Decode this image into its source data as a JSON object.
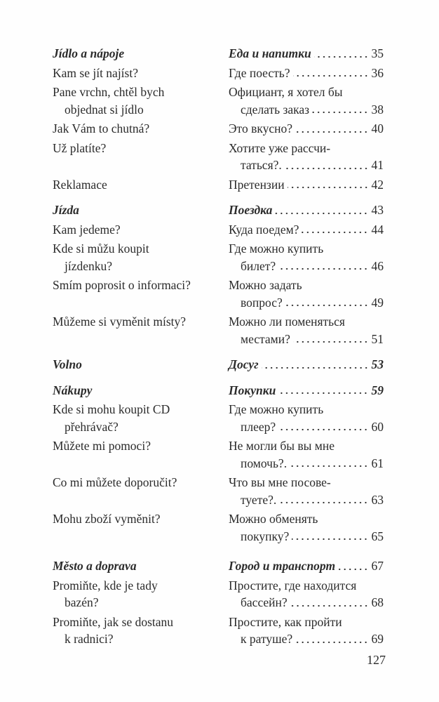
{
  "entries": [
    {
      "type": "heading",
      "cz": [
        "Jídlo a nápoje"
      ],
      "ru": [
        "Еда и напитки"
      ],
      "page": "35"
    },
    {
      "type": "item",
      "cz": [
        "Kam se jít najíst?"
      ],
      "ru": [
        "Где поесть?"
      ],
      "page": "36"
    },
    {
      "type": "item",
      "cz": [
        "Pane vrchn, chtěl bych",
        "objednat si jídlo"
      ],
      "ru": [
        "Официант, я хотел бы",
        "сделать заказ"
      ],
      "page": "38"
    },
    {
      "type": "item",
      "cz": [
        "Jak Vám to chutná?"
      ],
      "ru": [
        "Это вкусно?"
      ],
      "page": "40"
    },
    {
      "type": "item",
      "cz": [
        "Už platíte?"
      ],
      "ru": [
        "Хотите уже рассчи-",
        "таться?."
      ],
      "page": "41"
    },
    {
      "type": "item",
      "cz": [
        "Reklamace"
      ],
      "ru": [
        "Претензии"
      ],
      "page": "42"
    },
    {
      "type": "heading",
      "cz": [
        "Jízda"
      ],
      "ru": [
        "Поездка"
      ],
      "page": "43"
    },
    {
      "type": "item",
      "cz": [
        "Kam jedeme?"
      ],
      "ru": [
        "Куда поедем?"
      ],
      "page": "44"
    },
    {
      "type": "item",
      "cz": [
        "Kde si můžu koupit",
        "jízdenku?"
      ],
      "ru": [
        "Где можно купить",
        "билет?"
      ],
      "page": "46"
    },
    {
      "type": "item",
      "cz": [
        "Smím poprosit o informaci?"
      ],
      "ru": [
        "Можно задать",
        "вопрос?"
      ],
      "page": "49"
    },
    {
      "type": "item",
      "cz": [
        "Můžeme si vyměnit místy?"
      ],
      "ru": [
        "Можно ли поменяться",
        "местами?"
      ],
      "page": "51"
    },
    {
      "type": "heading",
      "cz": [
        "Volno"
      ],
      "ru": [
        "Досуг"
      ],
      "page": "53",
      "bold_page": true
    },
    {
      "type": "heading",
      "cz": [
        "Nákupy"
      ],
      "ru": [
        "Покупки"
      ],
      "page": "59",
      "bold_page": true
    },
    {
      "type": "item",
      "cz": [
        "Kde si mohu koupit CD",
        "přehrávač?"
      ],
      "ru": [
        "Где можно купить",
        "плеер?"
      ],
      "page": "60"
    },
    {
      "type": "item",
      "cz": [
        "Můžete mi pomoci?"
      ],
      "ru": [
        "Не могли бы вы мне",
        "помочь?."
      ],
      "page": "61"
    },
    {
      "type": "item",
      "cz": [
        "Co mi můžete doporučit?"
      ],
      "ru": [
        "Что вы мне посове-",
        "туете?."
      ],
      "page": "63"
    },
    {
      "type": "item",
      "cz": [
        "Mohu zboží  vyměnit?"
      ],
      "ru": [
        "Можно обменять",
        "покупку?"
      ],
      "page": "65"
    },
    {
      "type": "heading",
      "cz": [
        "Město a doprava"
      ],
      "ru": [
        "Город и транспорт"
      ],
      "page": "67",
      "big_gap": true
    },
    {
      "type": "item",
      "cz": [
        "Promiňte, kde je tady",
        "bazén?"
      ],
      "ru": [
        "Простите, где находится",
        "бассейн?"
      ],
      "page": "68"
    },
    {
      "type": "item",
      "cz": [
        "Promiňte, jak se dostanu",
        "k radnici?"
      ],
      "ru": [
        "Простите, как пройти",
        "к ратуше?"
      ],
      "page": "69"
    }
  ],
  "page_number": "127"
}
